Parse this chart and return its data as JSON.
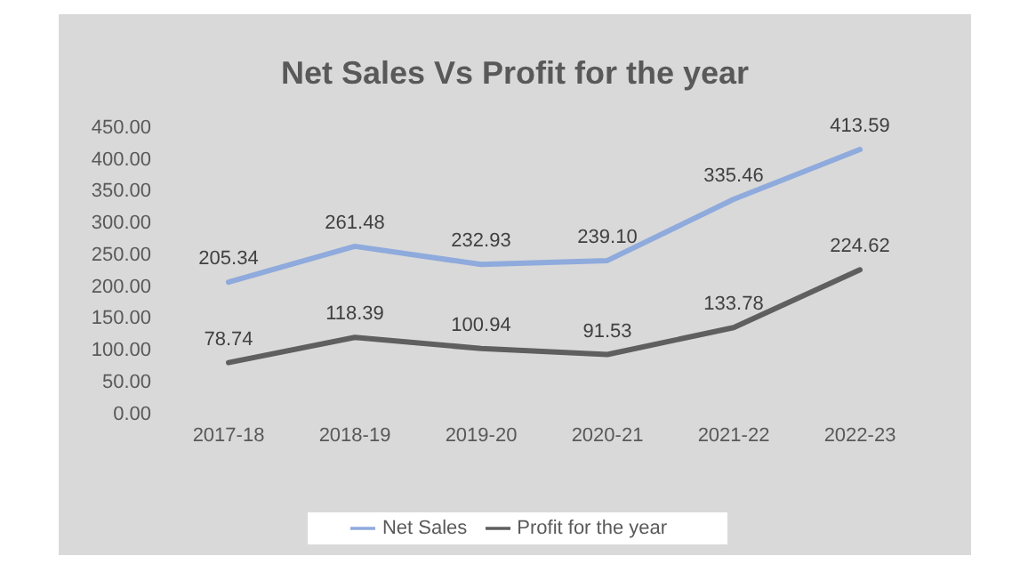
{
  "chart_data": {
    "type": "line",
    "title": "Net Sales Vs Profit for the year",
    "categories": [
      "2017-18",
      "2018-19",
      "2019-20",
      "2020-21",
      "2021-22",
      "2022-23"
    ],
    "series": [
      {
        "name": "Net Sales",
        "color": "#8faadc",
        "values": [
          205.34,
          261.48,
          232.93,
          239.1,
          335.46,
          413.59
        ],
        "value_labels": [
          "205.34",
          "261.48",
          "232.93",
          "239.10",
          "335.46",
          "413.59"
        ]
      },
      {
        "name": "Profit for the year",
        "color": "#5f5f5f",
        "values": [
          78.74,
          118.39,
          100.94,
          91.53,
          133.78,
          224.62
        ],
        "value_labels": [
          "78.74",
          "118.39",
          "100.94",
          "91.53",
          "133.78",
          "224.62"
        ]
      }
    ],
    "ylim": [
      0,
      450
    ],
    "yticks": [
      {
        "value": 0,
        "label": "0.00"
      },
      {
        "value": 50,
        "label": "50.00"
      },
      {
        "value": 100,
        "label": "100.00"
      },
      {
        "value": 150,
        "label": "150.00"
      },
      {
        "value": 200,
        "label": "200.00"
      },
      {
        "value": 250,
        "label": "250.00"
      },
      {
        "value": 300,
        "label": "300.00"
      },
      {
        "value": 350,
        "label": "350.00"
      },
      {
        "value": 400,
        "label": "400.00"
      },
      {
        "value": 450,
        "label": "450.00"
      }
    ],
    "legend": "bottom",
    "marker": "none",
    "line_style": "solid"
  }
}
